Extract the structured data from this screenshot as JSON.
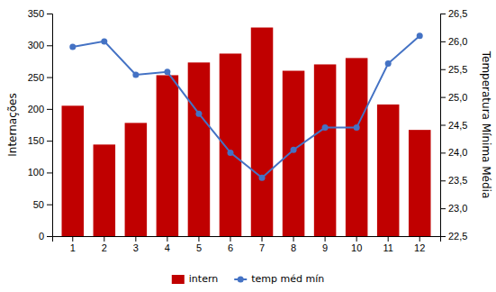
{
  "chart_data": {
    "type": "bar",
    "categories": [
      "1",
      "2",
      "3",
      "4",
      "5",
      "6",
      "7",
      "8",
      "9",
      "10",
      "11",
      "12"
    ],
    "ylabel": "Internações",
    "y2label": "Temperatura Mínima Média",
    "ylim": [
      0,
      350
    ],
    "yticks": [
      0,
      50,
      100,
      150,
      200,
      250,
      300,
      350
    ],
    "y2lim": [
      22.5,
      26.5
    ],
    "y2ticks": [
      {
        "value": 22.5,
        "label": "22,5"
      },
      {
        "value": 23.0,
        "label": "23,0"
      },
      {
        "value": 23.5,
        "label": "23,5"
      },
      {
        "value": 24.0,
        "label": "24,0"
      },
      {
        "value": 24.5,
        "label": "24,5"
      },
      {
        "value": 25.0,
        "label": "25,0"
      },
      {
        "value": 25.5,
        "label": "25,5"
      },
      {
        "value": 26.0,
        "label": "26,0"
      },
      {
        "value": 26.5,
        "label": "26,5"
      }
    ],
    "grid": false,
    "legend": "bottom",
    "series": [
      {
        "name": "intern",
        "type": "bar",
        "color": "#c00000",
        "values": [
          205,
          144,
          178,
          253,
          273,
          287,
          328,
          260,
          270,
          280,
          207,
          167
        ]
      },
      {
        "name": "temp méd mín",
        "type": "line",
        "axis": "y2",
        "color": "#4472c4",
        "marker": "circle",
        "values": [
          25.9,
          26.0,
          25.4,
          25.45,
          24.7,
          24.0,
          23.55,
          24.05,
          24.45,
          24.45,
          25.6,
          26.1
        ]
      }
    ]
  }
}
